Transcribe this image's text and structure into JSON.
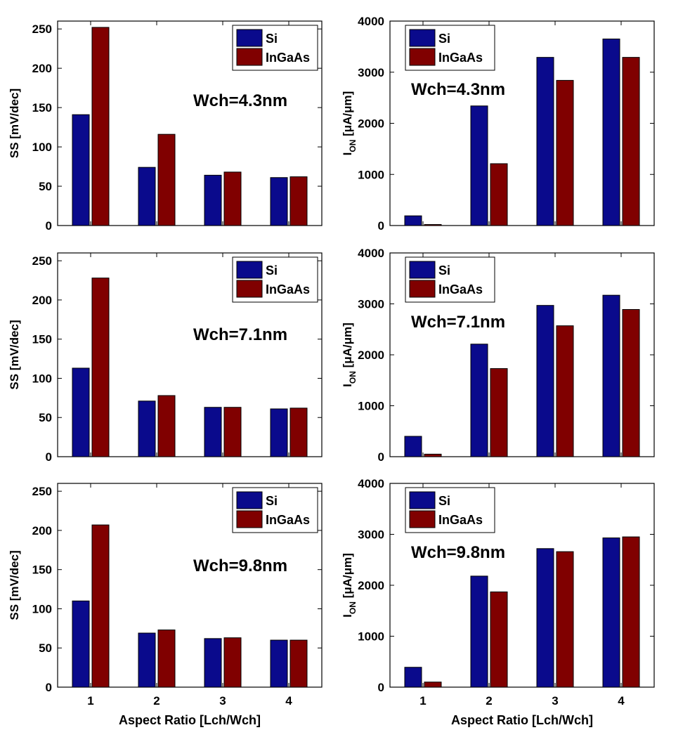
{
  "colors": {
    "Si": "#0a0a8c",
    "InGaAs": "#800000"
  },
  "chart_data": [
    {
      "type": "bar",
      "panel": "ss-4.3",
      "categories": [
        "1",
        "2",
        "3",
        "4"
      ],
      "series": [
        {
          "name": "Si",
          "values": [
            141,
            74,
            64,
            61
          ]
        },
        {
          "name": "InGaAs",
          "values": [
            252,
            116,
            68,
            62
          ]
        }
      ],
      "annotation": "Wch=4.3nm",
      "xlabel": "",
      "ylabel": "SS [mV/dec]",
      "ylim": [
        0,
        260
      ],
      "yticks": [
        0,
        50,
        100,
        150,
        200,
        250
      ],
      "legend_position": "top-right"
    },
    {
      "type": "bar",
      "panel": "ion-4.3",
      "categories": [
        "1",
        "2",
        "3",
        "4"
      ],
      "series": [
        {
          "name": "Si",
          "values": [
            190,
            2340,
            3290,
            3650
          ]
        },
        {
          "name": "InGaAs",
          "values": [
            20,
            1210,
            2840,
            3290
          ]
        }
      ],
      "annotation": "Wch=4.3nm",
      "xlabel": "",
      "ylabel": {
        "main": "I",
        "sub": "ON",
        "unit": " [μA/μm]"
      },
      "ylim": [
        0,
        4000
      ],
      "yticks": [
        0,
        1000,
        2000,
        3000,
        4000
      ],
      "legend_position": "top-left"
    },
    {
      "type": "bar",
      "panel": "ss-7.1",
      "categories": [
        "1",
        "2",
        "3",
        "4"
      ],
      "series": [
        {
          "name": "Si",
          "values": [
            113,
            71,
            63,
            61
          ]
        },
        {
          "name": "InGaAs",
          "values": [
            228,
            78,
            63,
            62
          ]
        }
      ],
      "annotation": "Wch=7.1nm",
      "xlabel": "",
      "ylabel": "SS [mV/dec]",
      "ylim": [
        0,
        260
      ],
      "yticks": [
        0,
        50,
        100,
        150,
        200,
        250
      ],
      "legend_position": "top-right"
    },
    {
      "type": "bar",
      "panel": "ion-7.1",
      "categories": [
        "1",
        "2",
        "3",
        "4"
      ],
      "series": [
        {
          "name": "Si",
          "values": [
            400,
            2210,
            2970,
            3170
          ]
        },
        {
          "name": "InGaAs",
          "values": [
            50,
            1730,
            2570,
            2890
          ]
        }
      ],
      "annotation": "Wch=7.1nm",
      "xlabel": "",
      "ylabel": {
        "main": "I",
        "sub": "ON",
        "unit": " [μA/μm]"
      },
      "ylim": [
        0,
        4000
      ],
      "yticks": [
        0,
        1000,
        2000,
        3000,
        4000
      ],
      "legend_position": "top-left"
    },
    {
      "type": "bar",
      "panel": "ss-9.8",
      "categories": [
        "1",
        "2",
        "3",
        "4"
      ],
      "series": [
        {
          "name": "Si",
          "values": [
            110,
            69,
            62,
            60
          ]
        },
        {
          "name": "InGaAs",
          "values": [
            207,
            73,
            63,
            60
          ]
        }
      ],
      "annotation": "Wch=9.8nm",
      "xlabel": "Aspect Ratio [Lch/Wch]",
      "ylabel": "SS [mV/dec]",
      "ylim": [
        0,
        260
      ],
      "yticks": [
        0,
        50,
        100,
        150,
        200,
        250
      ],
      "legend_position": "top-right"
    },
    {
      "type": "bar",
      "panel": "ion-9.8",
      "categories": [
        "1",
        "2",
        "3",
        "4"
      ],
      "series": [
        {
          "name": "Si",
          "values": [
            390,
            2180,
            2720,
            2930
          ]
        },
        {
          "name": "InGaAs",
          "values": [
            100,
            1870,
            2660,
            2950
          ]
        }
      ],
      "annotation": "Wch=9.8nm",
      "xlabel": "Aspect Ratio [Lch/Wch]",
      "ylabel": {
        "main": "I",
        "sub": "ON",
        "unit": " [μA/μm]"
      },
      "ylim": [
        0,
        4000
      ],
      "yticks": [
        0,
        1000,
        2000,
        3000,
        4000
      ],
      "legend_position": "top-left"
    }
  ]
}
